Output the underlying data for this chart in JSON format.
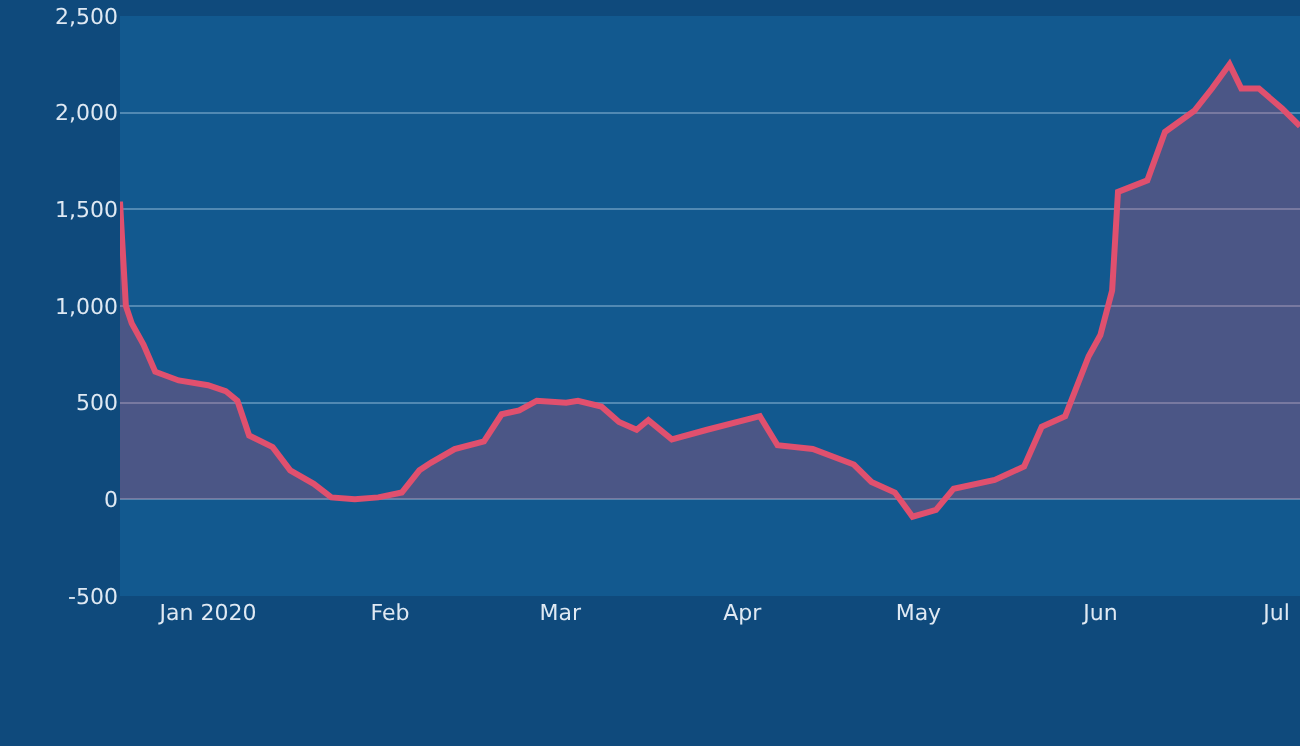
{
  "chart_data": {
    "type": "area",
    "x": [
      "2019-12-17",
      "2019-12-18",
      "2019-12-19",
      "2019-12-21",
      "2019-12-23",
      "2019-12-27",
      "2020-01-01",
      "2020-01-04",
      "2020-01-06",
      "2020-01-08",
      "2020-01-12",
      "2020-01-15",
      "2020-01-19",
      "2020-01-22",
      "2020-01-26",
      "2020-01-30",
      "2020-02-03",
      "2020-02-06",
      "2020-02-08",
      "2020-02-12",
      "2020-02-17",
      "2020-02-20",
      "2020-02-23",
      "2020-02-26",
      "2020-03-02",
      "2020-03-04",
      "2020-03-08",
      "2020-03-11",
      "2020-03-14",
      "2020-03-16",
      "2020-03-20",
      "2020-03-26",
      "2020-04-04",
      "2020-04-07",
      "2020-04-13",
      "2020-04-20",
      "2020-04-23",
      "2020-04-27",
      "2020-04-30",
      "2020-05-04",
      "2020-05-07",
      "2020-05-14",
      "2020-05-19",
      "2020-05-22",
      "2020-05-26",
      "2020-05-30",
      "2020-06-01",
      "2020-06-03",
      "2020-06-04",
      "2020-06-09",
      "2020-06-12",
      "2020-06-17",
      "2020-06-20",
      "2020-06-23",
      "2020-06-25",
      "2020-06-28",
      "2020-07-02",
      "2020-07-05"
    ],
    "series": [
      {
        "color": "#e0506e",
        "values": [
          1540,
          1000,
          910,
          800,
          660,
          615,
          590,
          560,
          510,
          330,
          270,
          150,
          80,
          10,
          0,
          10,
          35,
          150,
          190,
          260,
          300,
          440,
          460,
          510,
          500,
          510,
          480,
          400,
          360,
          410,
          310,
          360,
          430,
          280,
          260,
          180,
          90,
          35,
          -90,
          -55,
          55,
          100,
          170,
          375,
          430,
          740,
          850,
          1080,
          1590,
          1650,
          1900,
          2010,
          2125,
          2250,
          2125,
          2125,
          2020,
          1930
        ]
      }
    ],
    "xlim": [
      "2019-12-17",
      "2020-07-05"
    ],
    "xticks": [
      {
        "value": "2020-01-01",
        "label": "Jan 2020"
      },
      {
        "value": "2020-02-01",
        "label": "Feb"
      },
      {
        "value": "2020-03-01",
        "label": "Mar"
      },
      {
        "value": "2020-04-01",
        "label": "Apr"
      },
      {
        "value": "2020-05-01",
        "label": "May"
      },
      {
        "value": "2020-06-01",
        "label": "Jun"
      },
      {
        "value": "2020-07-01",
        "label": "Jul"
      }
    ],
    "ylim": [
      -500,
      2500
    ],
    "yticks": [
      -500,
      0,
      {
        "value": 500,
        "label": "500"
      },
      {
        "value": 1000,
        "label": "1,000"
      },
      {
        "value": 1500,
        "label": "1,500"
      },
      {
        "value": 2000,
        "label": "2,000"
      },
      {
        "value": 2500,
        "label": "2,500"
      }
    ],
    "grid": "y",
    "marker": "none",
    "line_style": "solid"
  }
}
